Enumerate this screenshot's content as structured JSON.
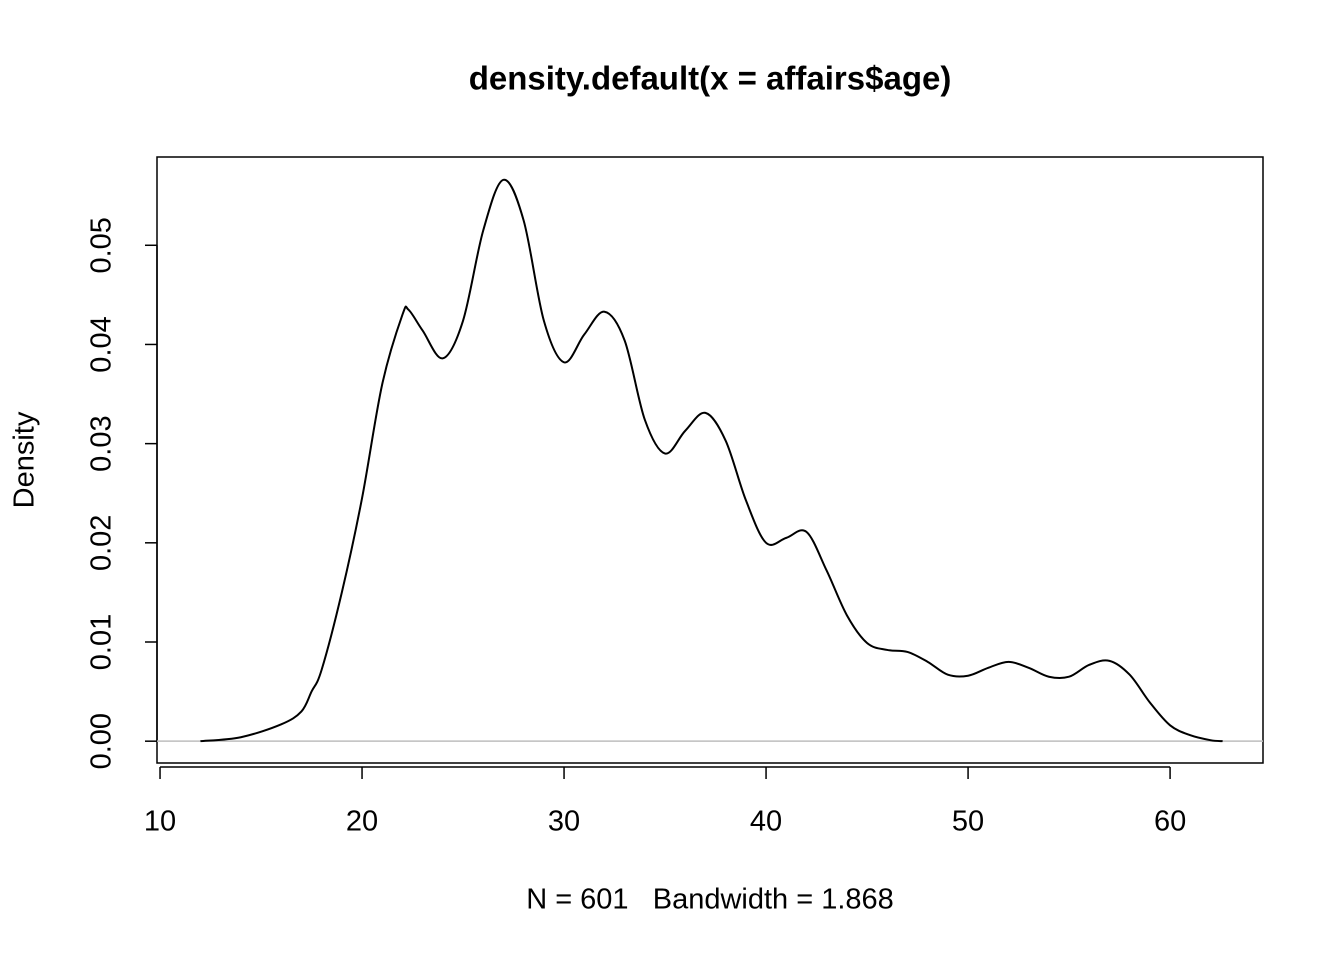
{
  "chart_data": {
    "type": "line",
    "title": "density.default(x = affairs$age)",
    "xlabel": "N = 601   Bandwidth = 1.868",
    "ylabel": "Density",
    "x": [
      12,
      14,
      16,
      17,
      17.5,
      18,
      19,
      20,
      21,
      22,
      22.3,
      23,
      24,
      25,
      26,
      27,
      28,
      29,
      30,
      31,
      32,
      33,
      34,
      35,
      36,
      37,
      38,
      39,
      40,
      41,
      42,
      43,
      44,
      45,
      46,
      47,
      48,
      49,
      50,
      51,
      52,
      53,
      54,
      55,
      56,
      57,
      58,
      59,
      60,
      61,
      62,
      62.6
    ],
    "series": [
      {
        "name": "density",
        "color": "#000000",
        "values": [
          0.0,
          0.0004,
          0.0017,
          0.003,
          0.005,
          0.0072,
          0.015,
          0.0245,
          0.036,
          0.043,
          0.0435,
          0.0414,
          0.0386,
          0.0424,
          0.0515,
          0.0566,
          0.0525,
          0.0424,
          0.0382,
          0.041,
          0.0433,
          0.0404,
          0.0324,
          0.029,
          0.0313,
          0.0331,
          0.0303,
          0.0243,
          0.02,
          0.0205,
          0.0211,
          0.0172,
          0.0127,
          0.0099,
          0.0092,
          0.009,
          0.008,
          0.0067,
          0.0066,
          0.0074,
          0.008,
          0.0074,
          0.0065,
          0.0065,
          0.0077,
          0.0081,
          0.0067,
          0.0039,
          0.0016,
          0.0006,
          0.0001,
          0.0
        ]
      }
    ],
    "xlim": [
      9.85,
      64.6
    ],
    "ylim": [
      -0.0022,
      0.0589
    ],
    "xticks": [
      10,
      20,
      30,
      40,
      50,
      60
    ],
    "yticks": [
      {
        "value": 0,
        "label": "0.00"
      },
      0.01,
      0.02,
      0.03,
      0.04,
      0.05
    ],
    "zero_line_color": "#bebebe"
  }
}
